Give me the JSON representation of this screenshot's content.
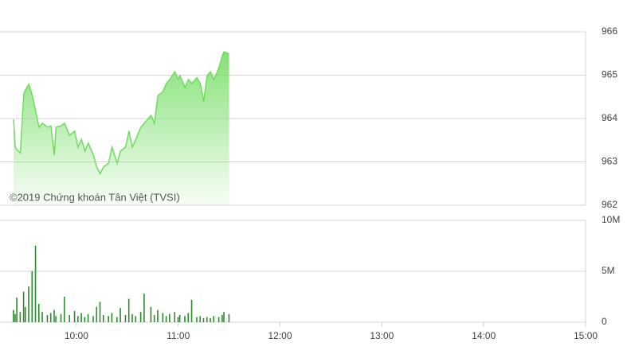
{
  "chart_data": [
    {
      "type": "area",
      "annotation": "©2019 Chứng khoán Tân Việt (TVSI)",
      "color": "#6fdc5e",
      "grid": true,
      "xlim": [
        555,
        900
      ],
      "ylim": [
        962,
        966
      ],
      "yticks": [
        962,
        963,
        964,
        965,
        966
      ],
      "x": [
        563,
        564,
        565,
        567,
        569,
        570,
        572,
        574,
        576,
        578,
        580,
        583,
        585,
        587,
        588,
        591,
        593,
        596,
        599,
        601,
        603,
        605,
        607,
        610,
        612,
        614,
        616,
        619,
        621,
        624,
        626,
        629,
        631,
        633,
        635,
        638,
        640,
        644,
        646,
        648,
        651,
        653,
        655,
        658,
        660,
        661,
        664,
        666,
        668,
        671,
        673,
        675,
        677,
        679,
        681,
        684,
        686,
        687,
        690
      ],
      "values": [
        963.98,
        963.34,
        963.28,
        963.21,
        964.57,
        964.66,
        964.79,
        964.53,
        964.17,
        963.8,
        963.89,
        963.8,
        963.83,
        963.16,
        963.8,
        963.83,
        963.89,
        963.61,
        963.71,
        963.34,
        963.52,
        963.25,
        963.43,
        963.16,
        962.88,
        962.73,
        962.88,
        962.97,
        963.34,
        962.97,
        963.25,
        963.34,
        963.71,
        963.34,
        963.52,
        963.8,
        963.89,
        964.07,
        963.89,
        964.53,
        964.62,
        964.81,
        964.9,
        965.08,
        964.9,
        964.99,
        964.72,
        964.9,
        964.81,
        964.94,
        964.81,
        964.39,
        964.99,
        965.08,
        964.9,
        965.17,
        965.45,
        965.54,
        965.49
      ]
    },
    {
      "type": "bar",
      "color": "#2b8a2b",
      "grid": true,
      "xlim": [
        555,
        900
      ],
      "ylim": [
        0,
        10000000
      ],
      "yticks": [
        0,
        {
          "value": 5000000,
          "label": "5M"
        },
        {
          "value": 10000000,
          "label": "10M"
        }
      ],
      "xticks": [
        {
          "value": 600,
          "label": "10:00"
        },
        {
          "value": 660,
          "label": "11:00"
        },
        {
          "value": 720,
          "label": "12:00"
        },
        {
          "value": 780,
          "label": "13:00"
        },
        {
          "value": 840,
          "label": "14:00"
        },
        {
          "value": 900,
          "label": "15:00"
        }
      ],
      "x": [
        563,
        564,
        565,
        567,
        569,
        570,
        572,
        574,
        576,
        578,
        580,
        583,
        585,
        587,
        588,
        591,
        593,
        596,
        599,
        601,
        603,
        605,
        607,
        610,
        612,
        614,
        616,
        619,
        621,
        624,
        626,
        629,
        631,
        633,
        635,
        638,
        640,
        644,
        646,
        648,
        651,
        653,
        655,
        658,
        660,
        661,
        664,
        666,
        668,
        671,
        673,
        675,
        677,
        679,
        681,
        684,
        686,
        687,
        690
      ],
      "values": [
        1200000,
        800000,
        2400000,
        1000000,
        3000000,
        1500000,
        3500000,
        5000000,
        7500000,
        1800000,
        1000000,
        700000,
        900000,
        1200000,
        600000,
        800000,
        2500000,
        700000,
        1100000,
        600000,
        900000,
        500000,
        800000,
        600000,
        1500000,
        2000000,
        700000,
        600000,
        900000,
        500000,
        1400000,
        700000,
        2300000,
        800000,
        600000,
        1000000,
        2800000,
        1500000,
        700000,
        1200000,
        900000,
        600000,
        800000,
        1000000,
        500000,
        700000,
        600000,
        900000,
        2200000,
        500000,
        600000,
        400000,
        500000,
        400000,
        600000,
        500000,
        700000,
        1000000,
        800000
      ]
    }
  ]
}
